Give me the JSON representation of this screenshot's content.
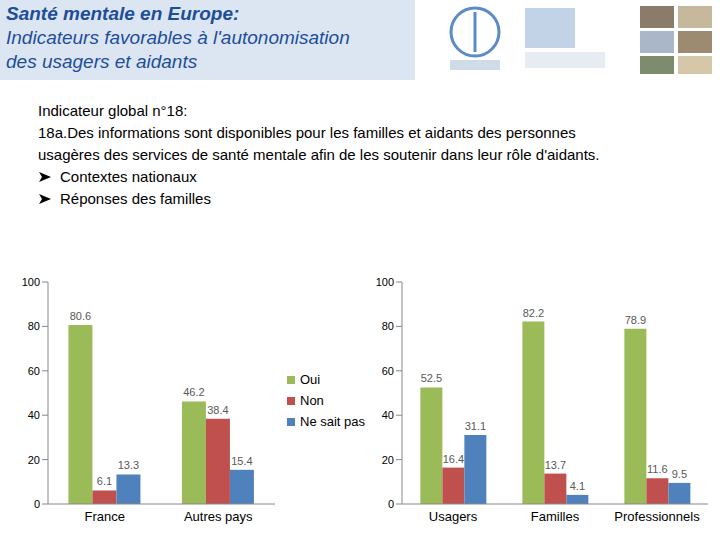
{
  "header": {
    "title_lines": [
      "Santé mentale en Europe:",
      "Indicateurs favorables à l'autonomisation",
      "des usagers et aidants"
    ]
  },
  "indicator": {
    "heading": "Indicateur global n°18:",
    "lines": [
      "18a.Des informations sont disponibles pour les familles et aidants des personnes",
      "usagères des services de santé mentale afin de les soutenir dans leur rôle d'aidants."
    ],
    "bullets": [
      "Contextes nationaux",
      "Réponses des familles"
    ]
  },
  "chart_data": [
    {
      "type": "bar",
      "categories": [
        "France",
        "Autres pays"
      ],
      "series": [
        {
          "name": "Oui",
          "color": "#9bbb59",
          "values": [
            80.6,
            46.2
          ]
        },
        {
          "name": "Non",
          "color": "#c0504d",
          "values": [
            6.1,
            38.4
          ]
        },
        {
          "name": "Ne sait pas",
          "color": "#4f81bd",
          "values": [
            13.3,
            15.4
          ]
        }
      ],
      "ylim": [
        0,
        100
      ],
      "yticks": [
        0,
        20,
        40,
        60,
        80,
        100
      ],
      "grid": false,
      "data_labels": true,
      "legend": "right"
    },
    {
      "type": "bar",
      "categories": [
        "Usagers",
        "Familles",
        "Professionnels"
      ],
      "series": [
        {
          "name": "Oui",
          "color": "#9bbb59",
          "values": [
            52.5,
            82.2,
            78.9
          ]
        },
        {
          "name": "Non",
          "color": "#c0504d",
          "values": [
            16.4,
            13.7,
            11.6
          ]
        },
        {
          "name": "Ne sait pas",
          "color": "#4f81bd",
          "values": [
            31.1,
            4.1,
            9.5
          ]
        }
      ],
      "ylim": [
        0,
        100
      ],
      "yticks": [
        0,
        20,
        40,
        60,
        80,
        100
      ],
      "grid": false,
      "data_labels": true
    }
  ]
}
